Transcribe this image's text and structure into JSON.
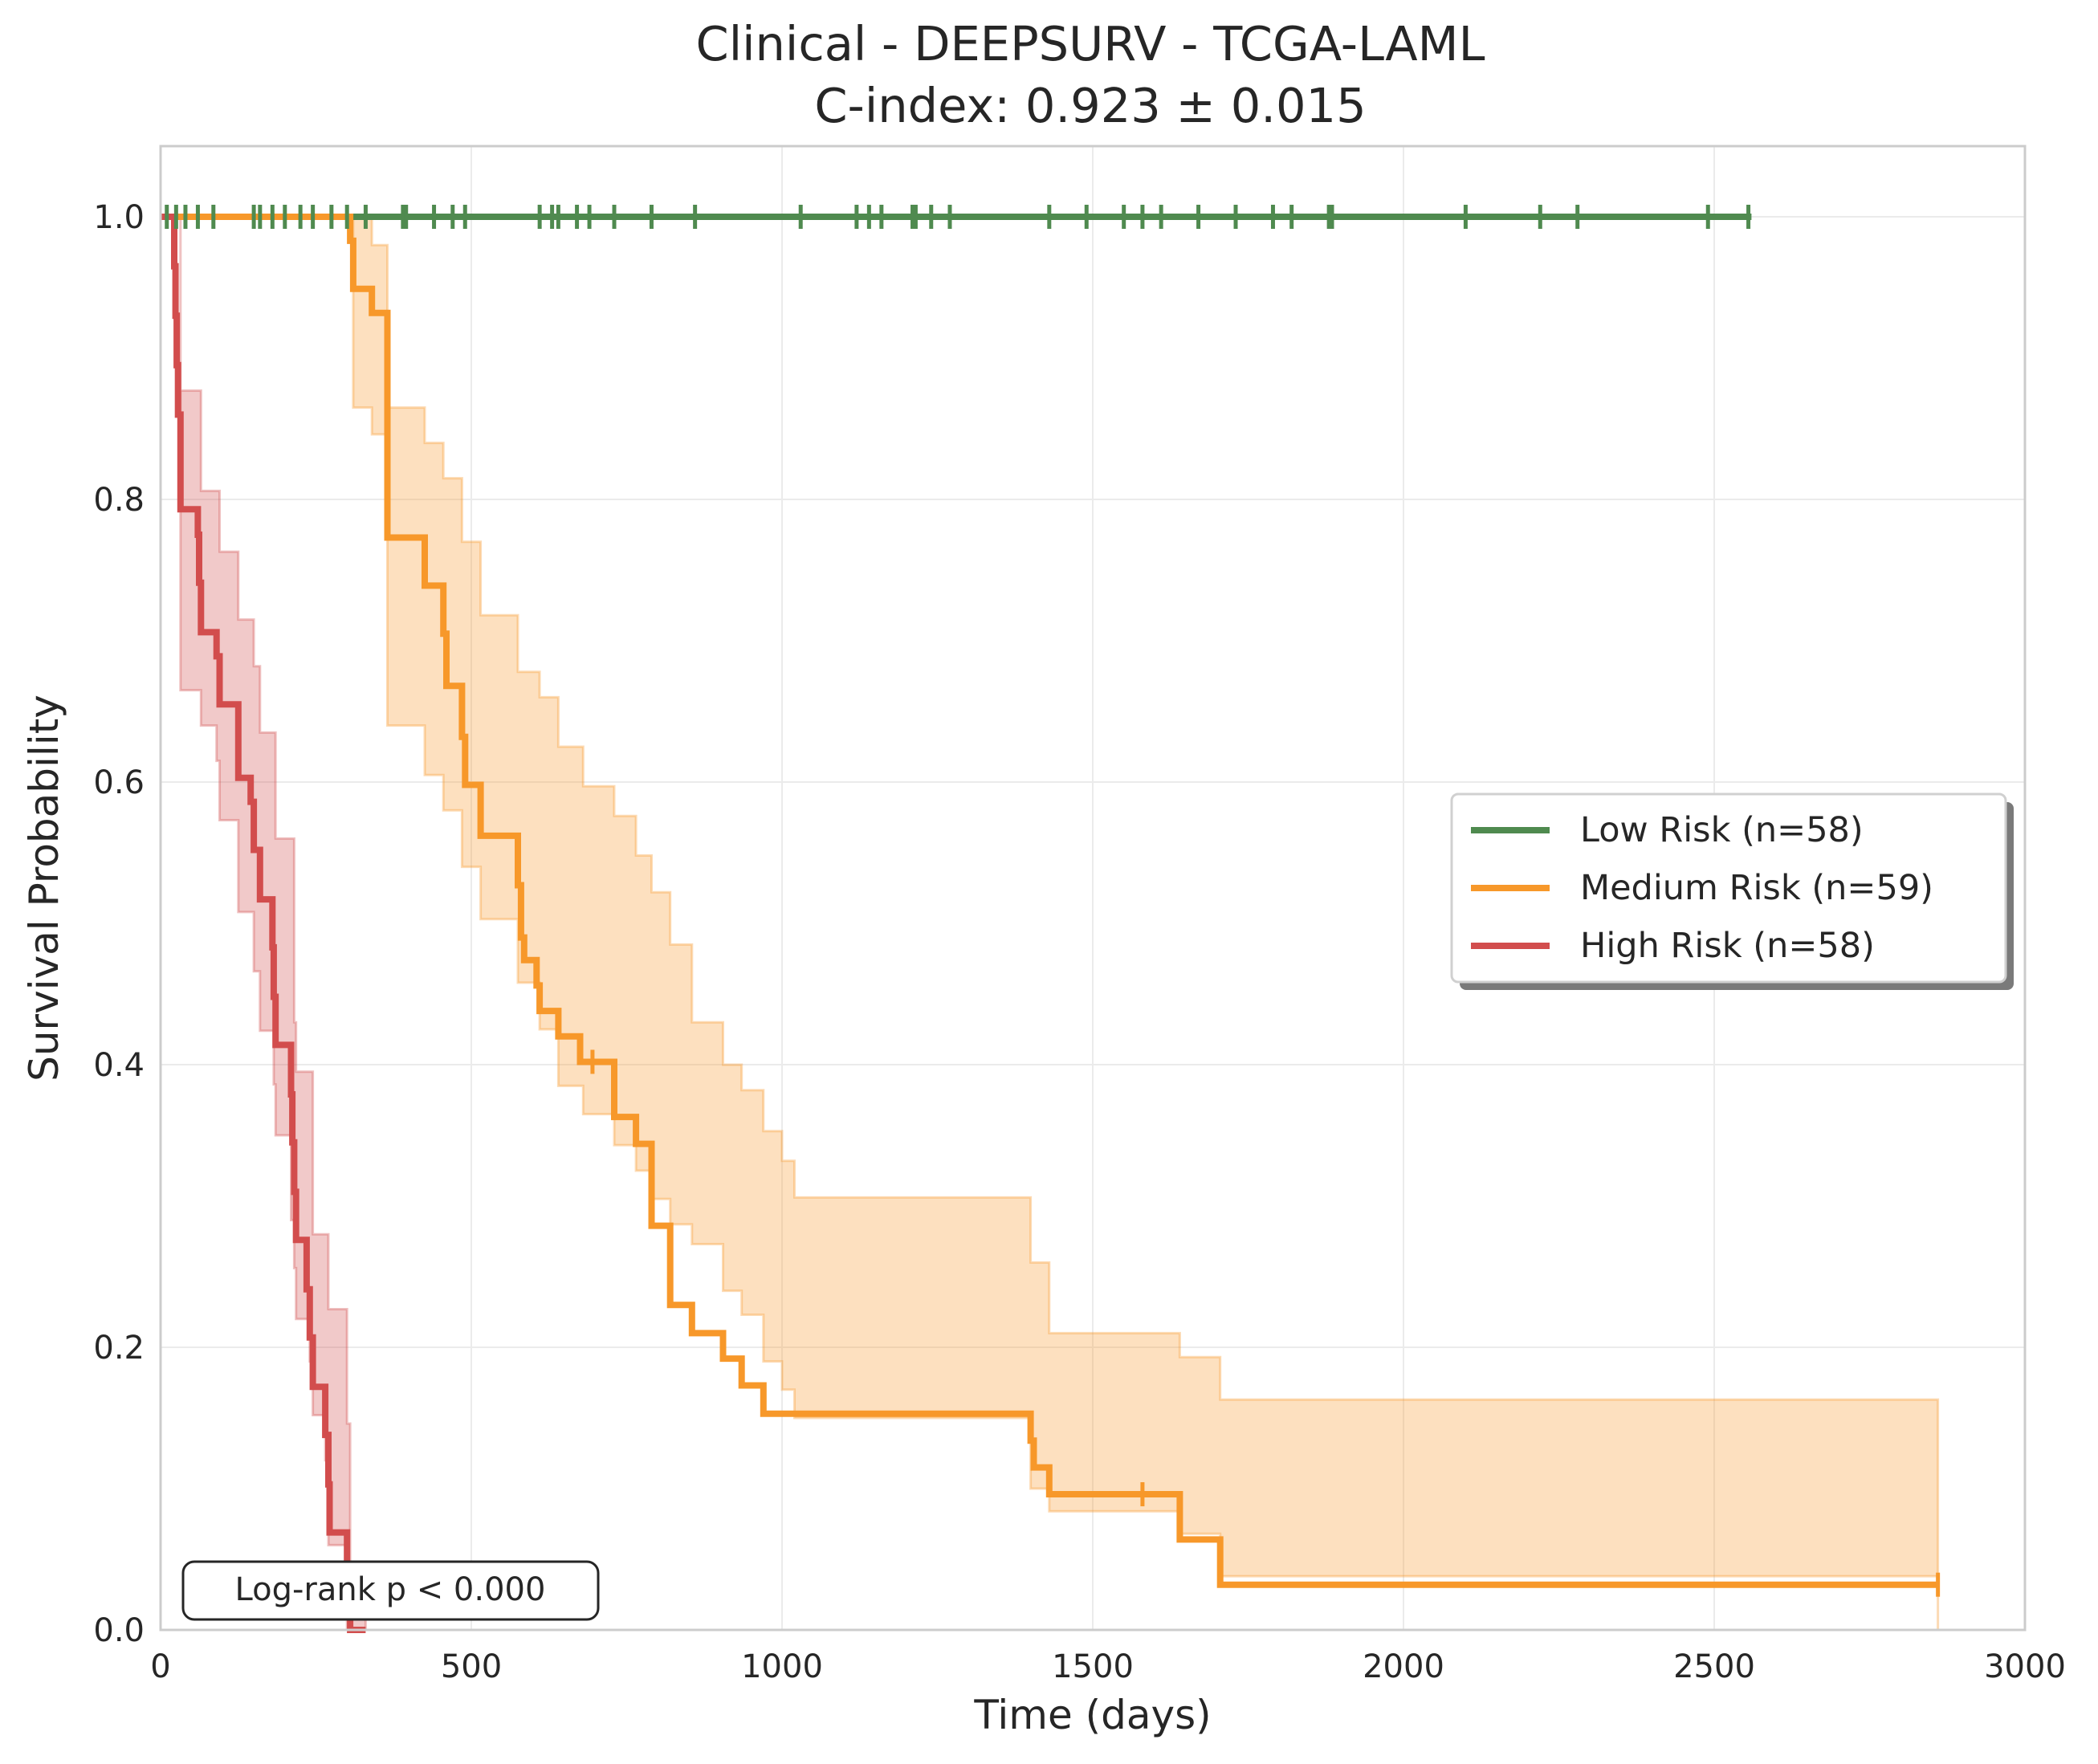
{
  "chart_data": {
    "type": "line",
    "subtype": "kaplan-meier",
    "title": "Clinical - DEEPSURV - TCGA-LAML",
    "subtitle": "C-index: 0.923 ± 0.015",
    "xlabel": "Time (days)",
    "ylabel": "Survival Probability",
    "xlim": [
      0,
      3000
    ],
    "ylim": [
      0,
      1.05
    ],
    "xticks": [
      0,
      500,
      1000,
      1500,
      2000,
      2500,
      3000
    ],
    "xtick_labels": [
      "0",
      "500",
      "1000",
      "1500",
      "2000",
      "2500",
      "3000"
    ],
    "yticks": [
      0,
      0.2,
      0.4,
      0.6,
      0.8,
      1.0
    ],
    "ytick_labels": [
      "0.0",
      "0.2",
      "0.4",
      "0.6",
      "0.8",
      "1.0"
    ],
    "grid": true,
    "legend_position": "center-right",
    "annotation": "Log-rank p < 0.000",
    "series": [
      {
        "name": "Low Risk (n=58)",
        "color": "#4f8a4f",
        "steps": [
          [
            0,
            1.0
          ],
          [
            2560,
            1.0
          ]
        ],
        "censor_times": [
          10,
          25,
          40,
          60,
          85,
          150,
          160,
          180,
          200,
          225,
          245,
          275,
          300,
          330,
          390,
          395,
          440,
          470,
          490,
          610,
          630,
          640,
          670,
          690,
          730,
          790,
          860,
          1030,
          1120,
          1140,
          1160,
          1210,
          1215,
          1240,
          1270,
          1430,
          1490,
          1550,
          1580,
          1610,
          1670,
          1730,
          1790,
          1820,
          1880,
          1885,
          2100,
          2220,
          2280,
          2490,
          2555
        ],
        "ci": null
      },
      {
        "name": "Medium Risk (n=59)",
        "color": "#f7982a",
        "steps": [
          [
            0,
            1.0
          ],
          [
            300,
            1.0
          ],
          [
            305,
            0.983
          ],
          [
            310,
            0.949
          ],
          [
            340,
            0.932
          ],
          [
            365,
            0.773
          ],
          [
            425,
            0.739
          ],
          [
            455,
            0.705
          ],
          [
            460,
            0.668
          ],
          [
            485,
            0.632
          ],
          [
            490,
            0.598
          ],
          [
            515,
            0.562
          ],
          [
            575,
            0.527
          ],
          [
            580,
            0.49
          ],
          [
            585,
            0.474
          ],
          [
            605,
            0.456
          ],
          [
            610,
            0.438
          ],
          [
            640,
            0.42
          ],
          [
            675,
            0.402
          ],
          [
            730,
            0.363
          ],
          [
            765,
            0.344
          ],
          [
            790,
            0.286
          ],
          [
            820,
            0.23
          ],
          [
            855,
            0.21
          ],
          [
            905,
            0.192
          ],
          [
            935,
            0.173
          ],
          [
            970,
            0.153
          ],
          [
            1400,
            0.134
          ],
          [
            1405,
            0.115
          ],
          [
            1430,
            0.096
          ],
          [
            1640,
            0.064
          ],
          [
            1705,
            0.032
          ],
          [
            2860,
            0.032
          ]
        ],
        "censor_times": [
          695,
          1580,
          2860
        ],
        "ci": {
          "upper": [
            [
              0,
              1.0
            ],
            [
              300,
              1.0
            ],
            [
              310,
              1.0
            ],
            [
              340,
              0.98
            ],
            [
              365,
              0.865
            ],
            [
              425,
              0.84
            ],
            [
              455,
              0.815
            ],
            [
              485,
              0.77
            ],
            [
              515,
              0.718
            ],
            [
              575,
              0.678
            ],
            [
              610,
              0.66
            ],
            [
              640,
              0.625
            ],
            [
              680,
              0.597
            ],
            [
              730,
              0.576
            ],
            [
              765,
              0.548
            ],
            [
              790,
              0.522
            ],
            [
              820,
              0.485
            ],
            [
              855,
              0.43
            ],
            [
              905,
              0.4
            ],
            [
              935,
              0.382
            ],
            [
              970,
              0.353
            ],
            [
              1000,
              0.332
            ],
            [
              1020,
              0.306
            ],
            [
              1400,
              0.26
            ],
            [
              1430,
              0.21
            ],
            [
              1640,
              0.193
            ],
            [
              1705,
              0.163
            ],
            [
              2860,
              0.13
            ]
          ],
          "lower": [
            [
              0,
              1.0
            ],
            [
              300,
              1.0
            ],
            [
              310,
              0.865
            ],
            [
              340,
              0.846
            ],
            [
              365,
              0.64
            ],
            [
              425,
              0.605
            ],
            [
              455,
              0.58
            ],
            [
              485,
              0.54
            ],
            [
              515,
              0.503
            ],
            [
              575,
              0.458
            ],
            [
              610,
              0.425
            ],
            [
              640,
              0.385
            ],
            [
              680,
              0.365
            ],
            [
              730,
              0.343
            ],
            [
              765,
              0.325
            ],
            [
              790,
              0.305
            ],
            [
              820,
              0.287
            ],
            [
              855,
              0.273
            ],
            [
              905,
              0.24
            ],
            [
              935,
              0.223
            ],
            [
              970,
              0.19
            ],
            [
              1000,
              0.17
            ],
            [
              1020,
              0.15
            ],
            [
              1400,
              0.1
            ],
            [
              1430,
              0.084
            ],
            [
              1640,
              0.068
            ],
            [
              1705,
              0.038
            ],
            [
              2860,
              0.0
            ]
          ]
        }
      },
      {
        "name": "High Risk (n=58)",
        "color": "#d24d4d",
        "steps": [
          [
            0,
            1.0
          ],
          [
            20,
            1.0
          ],
          [
            22,
            0.965
          ],
          [
            24,
            0.93
          ],
          [
            26,
            0.895
          ],
          [
            28,
            0.86
          ],
          [
            32,
            0.793
          ],
          [
            60,
            0.775
          ],
          [
            62,
            0.741
          ],
          [
            65,
            0.706
          ],
          [
            90,
            0.689
          ],
          [
            95,
            0.655
          ],
          [
            110,
            0.655
          ],
          [
            125,
            0.603
          ],
          [
            145,
            0.586
          ],
          [
            150,
            0.552
          ],
          [
            160,
            0.517
          ],
          [
            180,
            0.483
          ],
          [
            182,
            0.448
          ],
          [
            185,
            0.414
          ],
          [
            210,
            0.379
          ],
          [
            212,
            0.345
          ],
          [
            215,
            0.31
          ],
          [
            218,
            0.276
          ],
          [
            235,
            0.241
          ],
          [
            240,
            0.207
          ],
          [
            245,
            0.172
          ],
          [
            265,
            0.138
          ],
          [
            270,
            0.103
          ],
          [
            272,
            0.069
          ],
          [
            300,
            0.035
          ],
          [
            305,
            0.0
          ],
          [
            330,
            0.0
          ]
        ],
        "censor_times": [],
        "ci": {
          "upper": [
            [
              0,
              1.0
            ],
            [
              20,
              1.0
            ],
            [
              32,
              0.877
            ],
            [
              65,
              0.806
            ],
            [
              90,
              0.806
            ],
            [
              95,
              0.763
            ],
            [
              125,
              0.715
            ],
            [
              150,
              0.682
            ],
            [
              160,
              0.635
            ],
            [
              182,
              0.635
            ],
            [
              185,
              0.56
            ],
            [
              210,
              0.56
            ],
            [
              215,
              0.43
            ],
            [
              218,
              0.395
            ],
            [
              240,
              0.395
            ],
            [
              245,
              0.28
            ],
            [
              265,
              0.28
            ],
            [
              270,
              0.227
            ],
            [
              300,
              0.146
            ],
            [
              305,
              0.02
            ],
            [
              330,
              0.0
            ]
          ],
          "lower": [
            [
              0,
              1.0
            ],
            [
              20,
              1.0
            ],
            [
              32,
              0.665
            ],
            [
              65,
              0.64
            ],
            [
              90,
              0.615
            ],
            [
              95,
              0.573
            ],
            [
              125,
              0.508
            ],
            [
              150,
              0.466
            ],
            [
              160,
              0.424
            ],
            [
              182,
              0.386
            ],
            [
              185,
              0.35
            ],
            [
              210,
              0.29
            ],
            [
              215,
              0.256
            ],
            [
              218,
              0.22
            ],
            [
              240,
              0.19
            ],
            [
              245,
              0.152
            ],
            [
              265,
              0.12
            ],
            [
              270,
              0.06
            ],
            [
              300,
              0.0
            ],
            [
              330,
              0.0
            ]
          ]
        }
      }
    ]
  }
}
